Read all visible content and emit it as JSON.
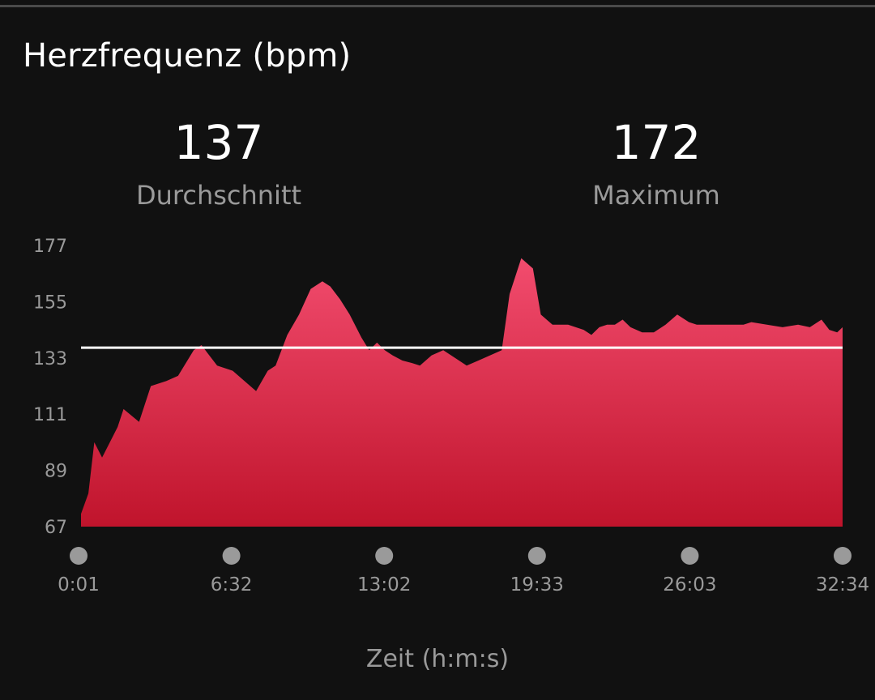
{
  "title": "Herzfrequenz (bpm)",
  "stats": {
    "average": {
      "value": "137",
      "label": "Durchschnitt"
    },
    "maximum": {
      "value": "172",
      "label": "Maximum"
    }
  },
  "colors": {
    "fill_top": "#f24c6e",
    "fill_bottom": "#c0142c",
    "avg_line": "#ffffff",
    "text_muted": "#9a9a9a",
    "dot": "#9a9a9a"
  },
  "chart_data": {
    "type": "area",
    "xlabel": "Zeit (h:m:s)",
    "ylabel": "",
    "ylim": [
      67,
      177
    ],
    "yticks": [
      "177",
      "155",
      "133",
      "111",
      "89",
      "67"
    ],
    "xlim_seconds": [
      1,
      1954
    ],
    "xticks": [
      "0:01",
      "6:32",
      "13:02",
      "19:33",
      "26:03",
      "32:34"
    ],
    "average_line": 137,
    "series": [
      {
        "x_seconds": [
          1,
          20,
          35,
          55,
          95,
          110,
          150,
          180,
          220,
          250,
          290,
          310,
          350,
          390,
          420,
          450,
          480,
          500,
          530,
          560,
          590,
          620,
          640,
          665,
          690,
          720,
          740,
          760,
          780,
          800,
          825,
          850,
          870,
          900,
          930,
          960,
          990,
          1020,
          1050,
          1080,
          1100,
          1130,
          1160,
          1180,
          1210,
          1250,
          1290,
          1310,
          1330,
          1350,
          1370,
          1390,
          1410,
          1440,
          1470,
          1500,
          1530,
          1560,
          1580,
          1620,
          1660,
          1700,
          1720,
          1760,
          1800,
          1840,
          1870,
          1900,
          1920,
          1940,
          1954
        ],
        "bpm": [
          72,
          80,
          100,
          94,
          106,
          113,
          108,
          122,
          124,
          126,
          136,
          138,
          130,
          128,
          124,
          120,
          128,
          130,
          142,
          150,
          160,
          163,
          161,
          156,
          150,
          141,
          136,
          139,
          136,
          134,
          132,
          131,
          130,
          134,
          136,
          133,
          130,
          132,
          134,
          136,
          158,
          172,
          168,
          150,
          146,
          146,
          144,
          142,
          145,
          146,
          146,
          148,
          145,
          143,
          143,
          146,
          150,
          147,
          146,
          146,
          146,
          146,
          147,
          146,
          145,
          146,
          145,
          148,
          144,
          143,
          145
        ]
      }
    ]
  }
}
